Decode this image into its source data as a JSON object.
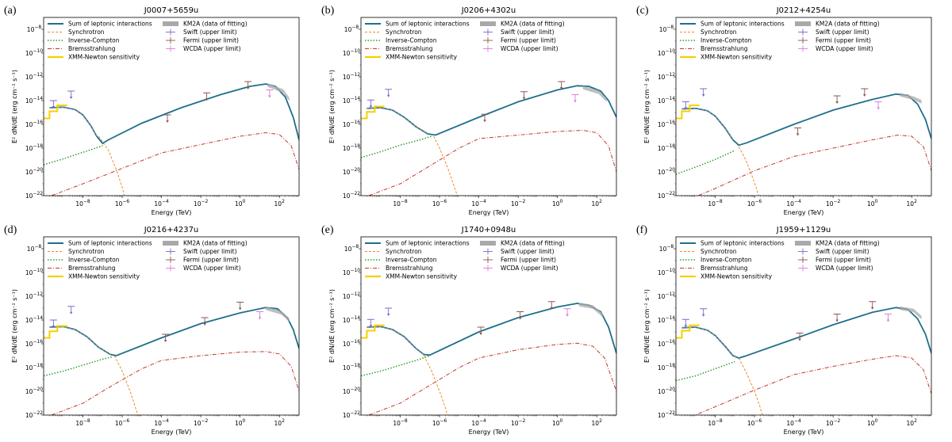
{
  "figure": {
    "xlabel": "Energy (TeV)",
    "ylabel": "E² dN/dE (erg cm⁻² s⁻¹)",
    "xlim_log10": [
      -10,
      3
    ],
    "ylim_log10": [
      -22,
      -7
    ],
    "xticks_log10": [
      -8,
      -6,
      -4,
      -2,
      0,
      2
    ],
    "yticks_log10": [
      -8,
      -10,
      -12,
      -14,
      -16,
      -18,
      -20,
      -22
    ],
    "legend_left": [
      "Sum of leptonic interactions",
      "Synchrotron",
      "Inverse-Compton",
      "Bremsstrahlung",
      "XMM-Newton sensitivity"
    ],
    "legend_right": [
      "KM2A (data of fitting)",
      "Swift (upper limit)",
      "Fermi (upper limit)",
      "WCDA (upper limit)"
    ],
    "colors": {
      "sum": "#1f6f8b",
      "synchrotron": "#f08a24",
      "inverse_compton": "#2ca02c",
      "bremsstrahlung": "#c0392b",
      "xmm": "#f5d000",
      "km2a": "#a9a9a9",
      "swift": "#7b68c8",
      "fermi": "#8c564b",
      "wcda": "#e07ad8"
    }
  },
  "chart_data": [
    {
      "type": "line",
      "label": "(a)",
      "title": "J0007+5659u",
      "sum_points": [
        [
          -9.7,
          -14.6
        ],
        [
          -9.0,
          -14.55
        ],
        [
          -8.4,
          -14.75
        ],
        [
          -8.0,
          -15.2
        ],
        [
          -7.6,
          -16.1
        ],
        [
          -7.3,
          -17.0
        ],
        [
          -7.0,
          -17.6
        ],
        [
          -6.7,
          -17.3
        ],
        [
          -5.0,
          -15.9
        ],
        [
          -3.0,
          -14.6
        ],
        [
          -1.0,
          -13.5
        ],
        [
          0.5,
          -12.8
        ],
        [
          1.3,
          -12.6
        ],
        [
          1.8,
          -12.8
        ],
        [
          2.3,
          -13.7
        ],
        [
          2.7,
          -15.4
        ],
        [
          3.0,
          -17.3
        ]
      ],
      "ic_points": [
        [
          -10.0,
          -19.4
        ],
        [
          -9.0,
          -18.9
        ],
        [
          -8.0,
          -18.35
        ],
        [
          -7.0,
          -17.8
        ]
      ],
      "brems_points": [
        [
          -9.6,
          -22.0
        ],
        [
          -8.0,
          -21.0
        ],
        [
          -6.0,
          -19.7
        ],
        [
          -4.0,
          -18.4
        ],
        [
          -2.0,
          -17.7
        ],
        [
          0.0,
          -17.0
        ],
        [
          1.3,
          -16.7
        ],
        [
          2.0,
          -16.85
        ],
        [
          2.6,
          -17.8
        ],
        [
          3.0,
          -19.8
        ]
      ],
      "sync_tail": [
        [
          -7.2,
          -17.0
        ],
        [
          -6.7,
          -18.2
        ],
        [
          -6.3,
          -19.8
        ],
        [
          -6.0,
          -21.3
        ],
        [
          -5.9,
          -22.0
        ]
      ],
      "xmm_steps": [
        [
          -10.0,
          -15.5
        ],
        [
          -9.7,
          -15.5
        ],
        [
          -9.7,
          -14.9
        ],
        [
          -9.3,
          -14.9
        ],
        [
          -9.3,
          -14.4
        ],
        [
          -8.8,
          -14.4
        ]
      ],
      "swift": [
        [
          -9.5,
          -14.0
        ],
        [
          -8.6,
          -13.2
        ]
      ],
      "fermi": [
        [
          -3.7,
          -15.2
        ],
        [
          -1.7,
          -13.35
        ],
        [
          0.4,
          -12.4
        ]
      ],
      "wcda": [
        [
          1.5,
          -13.1
        ]
      ],
      "km2a": [
        [
          1.4,
          -12.7
        ],
        [
          2.2,
          -13.2
        ],
        [
          2.5,
          -13.9
        ]
      ]
    },
    {
      "type": "line",
      "label": "(b)",
      "title": "J0206+4302u",
      "sum_points": [
        [
          -9.7,
          -14.65
        ],
        [
          -9.0,
          -14.6
        ],
        [
          -8.4,
          -14.8
        ],
        [
          -7.8,
          -15.4
        ],
        [
          -7.2,
          -16.2
        ],
        [
          -6.6,
          -16.8
        ],
        [
          -6.2,
          -16.9
        ],
        [
          -4.0,
          -15.4
        ],
        [
          -2.0,
          -14.1
        ],
        [
          0.0,
          -13.1
        ],
        [
          1.0,
          -12.75
        ],
        [
          1.6,
          -12.8
        ],
        [
          2.2,
          -13.2
        ],
        [
          2.6,
          -14.0
        ],
        [
          3.0,
          -15.4
        ]
      ],
      "ic_points": [
        [
          -10.0,
          -18.8
        ],
        [
          -9.0,
          -18.3
        ],
        [
          -8.0,
          -17.75
        ],
        [
          -7.0,
          -17.3
        ],
        [
          -6.4,
          -17.0
        ]
      ],
      "brems_points": [
        [
          -9.6,
          -22.0
        ],
        [
          -8.0,
          -21.0
        ],
        [
          -6.5,
          -19.5
        ],
        [
          -5.0,
          -18.0
        ],
        [
          -4.0,
          -17.2
        ],
        [
          -2.0,
          -16.9
        ],
        [
          0.0,
          -16.6
        ],
        [
          1.3,
          -16.5
        ],
        [
          2.0,
          -16.7
        ],
        [
          2.6,
          -17.8
        ],
        [
          3.0,
          -20.0
        ]
      ],
      "sync_tail": [
        [
          -6.3,
          -17.0
        ],
        [
          -6.0,
          -18.0
        ],
        [
          -5.6,
          -19.6
        ],
        [
          -5.3,
          -21.0
        ],
        [
          -5.1,
          -22.0
        ]
      ],
      "xmm_steps": [
        [
          -10.0,
          -15.5
        ],
        [
          -9.7,
          -15.5
        ],
        [
          -9.7,
          -14.95
        ],
        [
          -9.3,
          -14.95
        ],
        [
          -9.3,
          -14.5
        ],
        [
          -8.8,
          -14.5
        ]
      ],
      "swift": [
        [
          -9.5,
          -13.95
        ],
        [
          -8.6,
          -13.05
        ]
      ],
      "fermi": [
        [
          -3.7,
          -15.15
        ],
        [
          -1.7,
          -13.25
        ],
        [
          0.2,
          -12.4
        ]
      ],
      "wcda": [
        [
          0.9,
          -13.5
        ]
      ],
      "km2a": [
        [
          1.3,
          -12.9
        ],
        [
          2.1,
          -13.3
        ],
        [
          2.5,
          -13.95
        ]
      ]
    },
    {
      "type": "line",
      "label": "(c)",
      "title": "J0212+4254u",
      "sum_points": [
        [
          -9.7,
          -14.7
        ],
        [
          -9.0,
          -14.65
        ],
        [
          -8.4,
          -14.85
        ],
        [
          -8.0,
          -15.3
        ],
        [
          -7.5,
          -16.3
        ],
        [
          -7.1,
          -17.3
        ],
        [
          -6.8,
          -17.75
        ],
        [
          -6.4,
          -17.55
        ],
        [
          -4.0,
          -16.0
        ],
        [
          -2.0,
          -14.8
        ],
        [
          0.0,
          -13.9
        ],
        [
          1.2,
          -13.45
        ],
        [
          1.8,
          -13.55
        ],
        [
          2.3,
          -14.3
        ],
        [
          2.7,
          -15.6
        ],
        [
          3.0,
          -17.2
        ]
      ],
      "ic_points": [
        [
          -10.0,
          -20.2
        ],
        [
          -9.0,
          -19.6
        ],
        [
          -8.0,
          -18.95
        ],
        [
          -7.0,
          -18.2
        ]
      ],
      "brems_points": [
        [
          -9.6,
          -22.5
        ],
        [
          -8.0,
          -21.4
        ],
        [
          -6.0,
          -19.9
        ],
        [
          -4.0,
          -18.7
        ],
        [
          -2.0,
          -18.0
        ],
        [
          0.0,
          -17.3
        ],
        [
          1.3,
          -16.9
        ],
        [
          2.0,
          -17.0
        ],
        [
          2.6,
          -17.9
        ],
        [
          3.0,
          -19.9
        ]
      ],
      "sync_tail": [
        [
          -6.9,
          -17.6
        ],
        [
          -6.5,
          -18.8
        ],
        [
          -6.2,
          -20.0
        ],
        [
          -5.9,
          -21.4
        ],
        [
          -5.8,
          -22.0
        ]
      ],
      "xmm_steps": [
        [
          -10.0,
          -15.5
        ],
        [
          -9.7,
          -15.5
        ],
        [
          -9.7,
          -14.9
        ],
        [
          -9.3,
          -14.9
        ],
        [
          -9.3,
          -14.4
        ],
        [
          -8.8,
          -14.4
        ]
      ],
      "swift": [
        [
          -9.5,
          -14.1
        ],
        [
          -8.6,
          -13.0
        ]
      ],
      "fermi": [
        [
          -3.8,
          -16.3
        ],
        [
          -1.8,
          -13.6
        ],
        [
          -0.4,
          -13.0
        ]
      ],
      "wcda": [
        [
          0.3,
          -14.1
        ]
      ],
      "km2a": [
        [
          1.4,
          -13.5
        ],
        [
          2.1,
          -13.8
        ],
        [
          2.5,
          -14.1
        ]
      ]
    },
    {
      "type": "line",
      "label": "(d)",
      "title": "J0216+4237u",
      "sum_points": [
        [
          -9.7,
          -14.6
        ],
        [
          -9.0,
          -14.55
        ],
        [
          -8.4,
          -14.8
        ],
        [
          -7.8,
          -15.4
        ],
        [
          -7.2,
          -16.3
        ],
        [
          -6.6,
          -16.9
        ],
        [
          -6.3,
          -17.0
        ],
        [
          -4.0,
          -15.5
        ],
        [
          -2.0,
          -14.3
        ],
        [
          0.0,
          -13.4
        ],
        [
          1.3,
          -12.95
        ],
        [
          1.9,
          -13.05
        ],
        [
          2.4,
          -13.8
        ],
        [
          2.7,
          -14.8
        ],
        [
          3.0,
          -16.4
        ]
      ],
      "ic_points": [
        [
          -10.0,
          -18.7
        ],
        [
          -9.0,
          -18.3
        ],
        [
          -8.0,
          -17.8
        ],
        [
          -7.0,
          -17.3
        ],
        [
          -6.5,
          -17.1
        ]
      ],
      "brems_points": [
        [
          -9.6,
          -22.0
        ],
        [
          -8.0,
          -21.0
        ],
        [
          -6.5,
          -19.5
        ],
        [
          -5.0,
          -18.1
        ],
        [
          -4.0,
          -17.4
        ],
        [
          -2.0,
          -17.0
        ],
        [
          0.0,
          -16.7
        ],
        [
          1.3,
          -16.65
        ],
        [
          2.0,
          -16.85
        ],
        [
          2.6,
          -17.9
        ],
        [
          3.0,
          -20.0
        ]
      ],
      "sync_tail": [
        [
          -6.4,
          -17.0
        ],
        [
          -6.0,
          -18.3
        ],
        [
          -5.6,
          -20.0
        ],
        [
          -5.3,
          -21.5
        ],
        [
          -5.2,
          -22.0
        ]
      ],
      "xmm_steps": [
        [
          -10.0,
          -15.5
        ],
        [
          -9.7,
          -15.5
        ],
        [
          -9.7,
          -14.95
        ],
        [
          -9.3,
          -14.95
        ],
        [
          -9.3,
          -14.5
        ],
        [
          -8.8,
          -14.5
        ]
      ],
      "swift": [
        [
          -9.5,
          -14.0
        ],
        [
          -8.6,
          -12.85
        ]
      ],
      "fermi": [
        [
          -3.8,
          -15.2
        ],
        [
          -1.8,
          -13.8
        ],
        [
          0.0,
          -12.5
        ]
      ],
      "wcda": [
        [
          1.0,
          -13.3
        ]
      ],
      "km2a": [
        [
          1.3,
          -13.0
        ],
        [
          2.1,
          -13.4
        ],
        [
          2.5,
          -14.0
        ]
      ]
    },
    {
      "type": "line",
      "label": "(e)",
      "title": "J1740+0948u",
      "sum_points": [
        [
          -9.7,
          -14.6
        ],
        [
          -9.0,
          -14.55
        ],
        [
          -8.4,
          -14.8
        ],
        [
          -7.8,
          -15.4
        ],
        [
          -7.2,
          -16.4
        ],
        [
          -6.8,
          -16.9
        ],
        [
          -6.5,
          -16.95
        ],
        [
          -4.0,
          -15.0
        ],
        [
          -2.0,
          -13.8
        ],
        [
          0.0,
          -12.9
        ],
        [
          1.0,
          -12.6
        ],
        [
          1.6,
          -12.75
        ],
        [
          2.2,
          -13.3
        ],
        [
          2.6,
          -14.6
        ],
        [
          3.0,
          -16.8
        ]
      ],
      "ic_points": [
        [
          -10.0,
          -18.7
        ],
        [
          -9.0,
          -18.3
        ],
        [
          -8.0,
          -17.8
        ],
        [
          -7.0,
          -17.3
        ],
        [
          -6.5,
          -17.0
        ]
      ],
      "brems_points": [
        [
          -9.6,
          -22.0
        ],
        [
          -8.0,
          -21.0
        ],
        [
          -6.5,
          -19.5
        ],
        [
          -5.0,
          -18.0
        ],
        [
          -4.0,
          -17.2
        ],
        [
          -2.0,
          -16.5
        ],
        [
          0.0,
          -16.05
        ],
        [
          1.0,
          -15.95
        ],
        [
          1.8,
          -16.2
        ],
        [
          2.4,
          -17.2
        ],
        [
          3.0,
          -20.0
        ]
      ],
      "sync_tail": [
        [
          -6.8,
          -17.0
        ],
        [
          -6.4,
          -18.3
        ],
        [
          -6.0,
          -20.0
        ],
        [
          -5.7,
          -21.4
        ],
        [
          -5.6,
          -22.0
        ]
      ],
      "xmm_steps": [
        [
          -10.0,
          -15.5
        ],
        [
          -9.7,
          -15.5
        ],
        [
          -9.7,
          -14.9
        ],
        [
          -9.3,
          -14.9
        ],
        [
          -9.3,
          -14.45
        ],
        [
          -8.8,
          -14.45
        ]
      ],
      "swift": [
        [
          -9.5,
          -13.95
        ],
        [
          -8.6,
          -13.0
        ]
      ],
      "fermi": [
        [
          -3.9,
          -14.6
        ],
        [
          -1.9,
          -13.3
        ],
        [
          -0.3,
          -12.45
        ]
      ],
      "wcda": [
        [
          0.5,
          -13.05
        ]
      ],
      "km2a": [
        [
          1.1,
          -12.7
        ],
        [
          1.8,
          -12.9
        ],
        [
          2.3,
          -13.6
        ]
      ]
    },
    {
      "type": "line",
      "label": "(f)",
      "title": "J1959+1129u",
      "sum_points": [
        [
          -9.7,
          -14.65
        ],
        [
          -9.0,
          -14.6
        ],
        [
          -8.4,
          -14.85
        ],
        [
          -8.0,
          -15.3
        ],
        [
          -7.5,
          -16.2
        ],
        [
          -7.1,
          -17.0
        ],
        [
          -6.8,
          -17.2
        ],
        [
          -6.5,
          -17.05
        ],
        [
          -4.0,
          -15.6
        ],
        [
          -2.0,
          -14.4
        ],
        [
          0.0,
          -13.35
        ],
        [
          1.2,
          -12.95
        ],
        [
          1.8,
          -13.1
        ],
        [
          2.3,
          -13.9
        ],
        [
          2.7,
          -15.2
        ],
        [
          3.0,
          -16.8
        ]
      ],
      "ic_points": [
        [
          -10.0,
          -19.1
        ],
        [
          -9.0,
          -18.7
        ],
        [
          -8.0,
          -18.1
        ],
        [
          -7.0,
          -17.5
        ]
      ],
      "brems_points": [
        [
          -9.6,
          -22.4
        ],
        [
          -8.0,
          -21.3
        ],
        [
          -6.0,
          -19.9
        ],
        [
          -4.0,
          -18.6
        ],
        [
          -2.0,
          -17.9
        ],
        [
          0.0,
          -17.3
        ],
        [
          1.2,
          -17.0
        ],
        [
          2.0,
          -17.2
        ],
        [
          2.6,
          -18.2
        ],
        [
          3.0,
          -20.2
        ]
      ],
      "sync_tail": [
        [
          -6.8,
          -17.2
        ],
        [
          -6.4,
          -18.5
        ],
        [
          -6.0,
          -20.0
        ],
        [
          -5.7,
          -21.4
        ],
        [
          -5.6,
          -22.0
        ]
      ],
      "xmm_steps": [
        [
          -10.0,
          -15.5
        ],
        [
          -9.7,
          -15.5
        ],
        [
          -9.7,
          -14.9
        ],
        [
          -9.3,
          -14.9
        ],
        [
          -9.3,
          -14.45
        ],
        [
          -8.8,
          -14.45
        ]
      ],
      "swift": [
        [
          -9.5,
          -13.95
        ],
        [
          -8.6,
          -13.05
        ]
      ],
      "fermi": [
        [
          -3.7,
          -15.1
        ],
        [
          -1.8,
          -13.5
        ],
        [
          0.0,
          -12.45
        ]
      ],
      "wcda": [
        [
          0.8,
          -13.5
        ]
      ],
      "km2a": [
        [
          1.4,
          -13.0
        ],
        [
          2.1,
          -13.2
        ],
        [
          2.5,
          -13.8
        ]
      ]
    }
  ]
}
